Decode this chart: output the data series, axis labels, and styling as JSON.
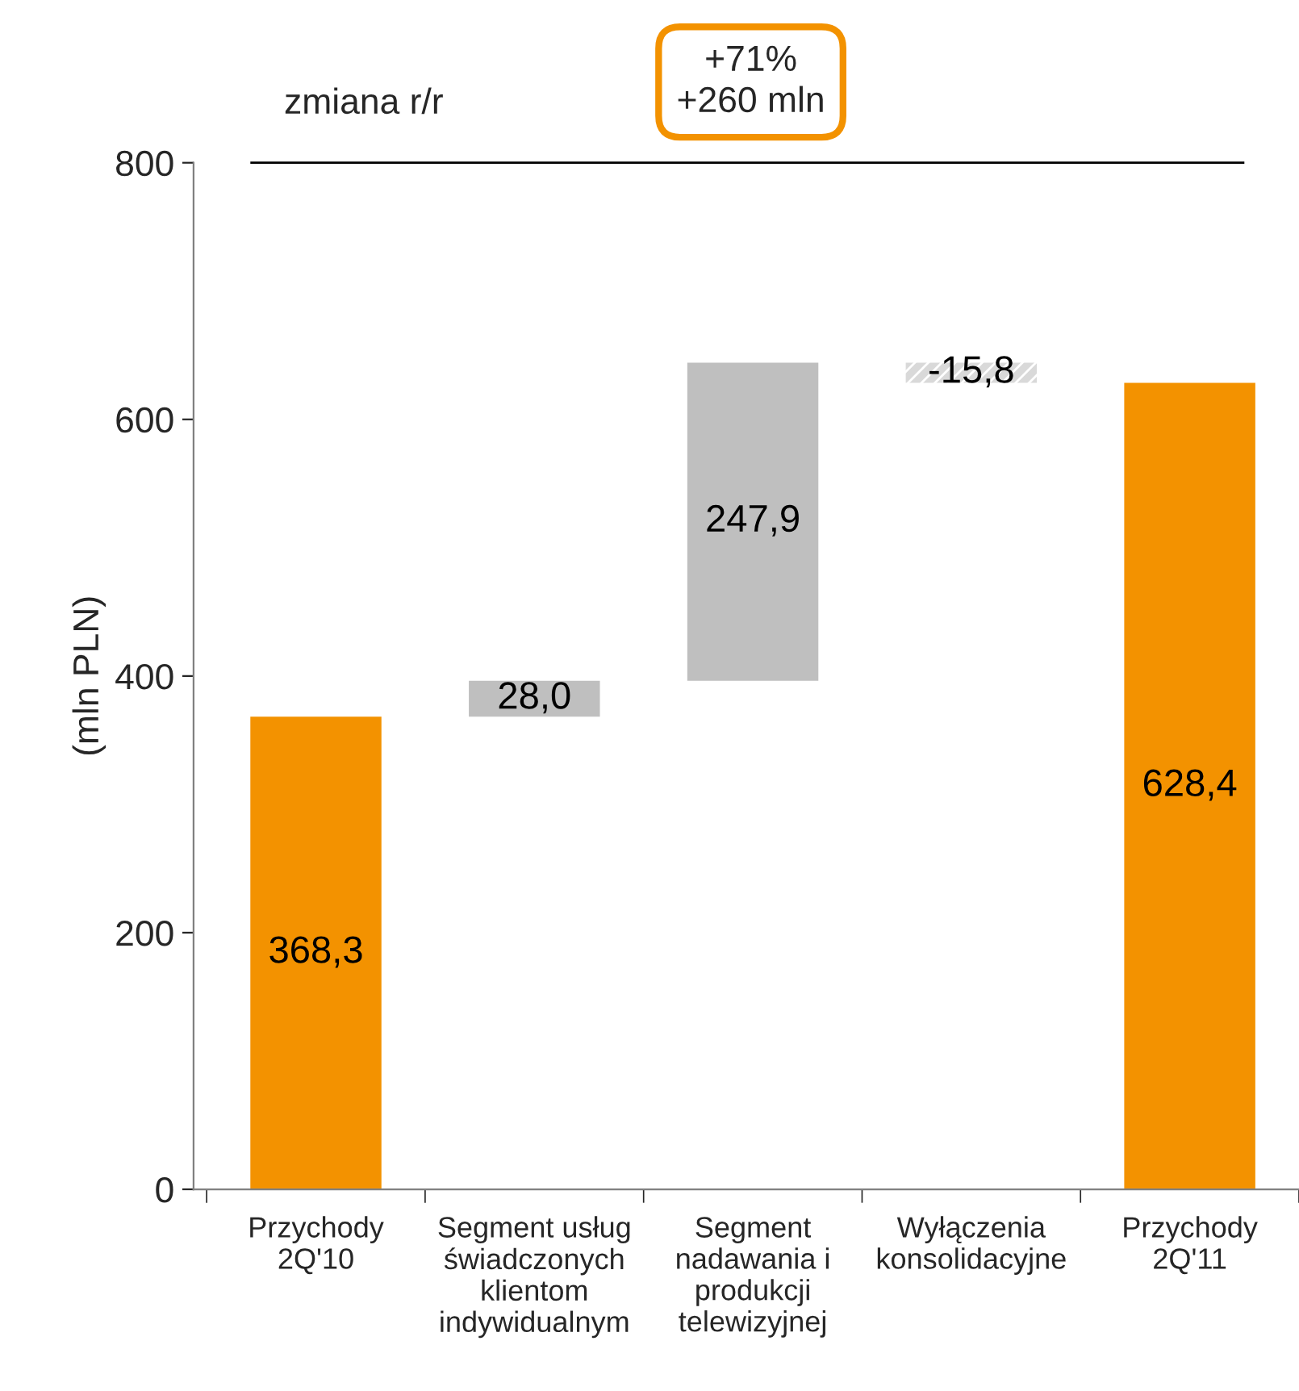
{
  "chart_data": {
    "type": "bar",
    "categories": [
      "Przychody\n2Q'10",
      "Segment usług\nświadczonych\nklientom\nindywidualnym",
      "Segment\nnadawania i\nprodukcji\ntelewizyjnej",
      "Wyłączenia\nkonsolidacyjne",
      "Przychody\n2Q'11"
    ],
    "values": [
      368.3,
      28.0,
      247.9,
      -15.8,
      628.4
    ],
    "base": [
      0,
      368.3,
      396.3,
      644.2,
      0
    ],
    "colors": [
      "#f39200",
      "#bfbfbf",
      "#bfbfbf",
      "#d9d9d9",
      "#f39200"
    ],
    "value_labels": [
      "368,3",
      "28,0",
      "247,9",
      "-15,8",
      "628,4"
    ],
    "ylabel": "(mln PLN)",
    "ylim": [
      0,
      800
    ],
    "yticks": [
      0,
      200,
      400,
      600,
      800
    ],
    "ref_lines": [
      {
        "axis": "y",
        "value": 800,
        "color": "#000000"
      }
    ],
    "annotations": [
      "zmiana r/r",
      "+71%\n+260 mln"
    ],
    "grid": false,
    "legend": false
  }
}
